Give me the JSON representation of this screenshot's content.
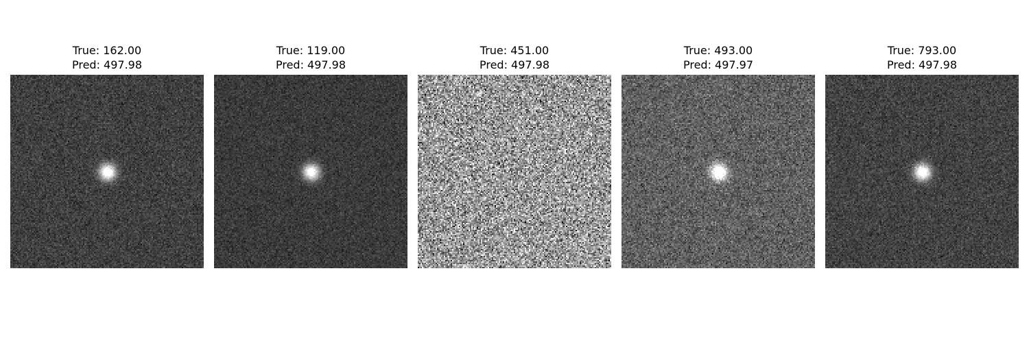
{
  "figure": {
    "panels": [
      {
        "true_label": "True: 162.00",
        "pred_label": "Pred: 497.98",
        "image": {
          "description_icon": "noisy-star-image",
          "background_level": 0.25,
          "noise_level": 0.2,
          "spot_brightness": 0.95,
          "spot_present": true
        }
      },
      {
        "true_label": "True: 119.00",
        "pred_label": "Pred: 497.98",
        "image": {
          "description_icon": "noisy-star-image",
          "background_level": 0.23,
          "noise_level": 0.17,
          "spot_brightness": 0.9,
          "spot_present": true
        }
      },
      {
        "true_label": "True: 451.00",
        "pred_label": "Pred: 497.98",
        "image": {
          "description_icon": "noisy-image",
          "background_level": 0.6,
          "noise_level": 0.65,
          "spot_brightness": 0.0,
          "spot_present": false
        }
      },
      {
        "true_label": "True: 493.00",
        "pred_label": "Pred: 497.97",
        "image": {
          "description_icon": "noisy-star-image",
          "background_level": 0.38,
          "noise_level": 0.3,
          "spot_brightness": 0.95,
          "spot_present": true
        }
      },
      {
        "true_label": "True: 793.00",
        "pred_label": "Pred: 497.98",
        "image": {
          "description_icon": "noisy-star-image",
          "background_level": 0.26,
          "noise_level": 0.2,
          "spot_brightness": 0.95,
          "spot_present": true
        }
      }
    ]
  }
}
